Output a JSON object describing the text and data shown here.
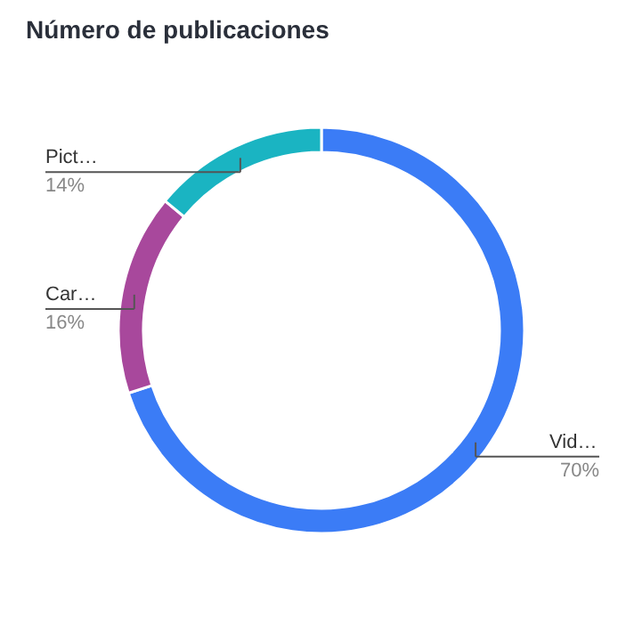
{
  "chart_data": {
    "type": "donut",
    "title": "Número de publicaciones",
    "categories": [
      "Vid…",
      "Car…",
      "Pict…"
    ],
    "values": [
      70,
      16,
      14
    ],
    "value_labels": [
      "70%",
      "16%",
      "14%"
    ],
    "colors": [
      "#3b7cf6",
      "#a8489c",
      "#1ab4c2"
    ]
  }
}
